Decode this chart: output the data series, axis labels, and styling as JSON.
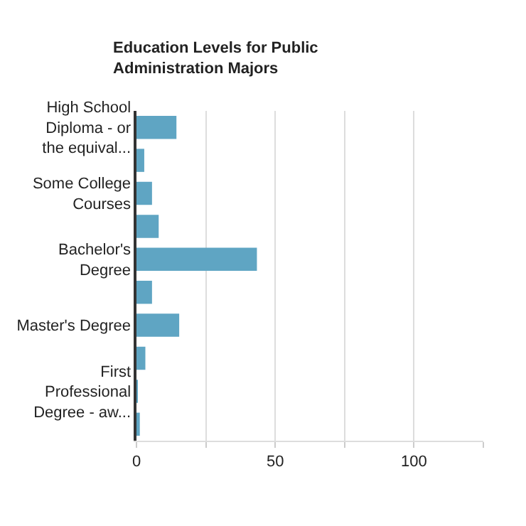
{
  "chart_data": {
    "type": "bar",
    "orientation": "horizontal",
    "title": "Education Levels for Public Administration Majors",
    "categories": [
      "High School Diploma - or the equival...",
      null,
      "Some College Courses",
      null,
      "Bachelor's Degree",
      null,
      "Master's Degree",
      null,
      "First Professional Degree - aw...",
      null
    ],
    "values": [
      14.4,
      2.8,
      5.6,
      8.0,
      43.4,
      5.6,
      15.4,
      3.2,
      0.5,
      1.2
    ],
    "color": "#5fa5c3",
    "xlim": [
      0,
      125
    ],
    "xticks": [
      0,
      {
        "value": 25,
        "label": null
      },
      50,
      {
        "value": 75,
        "label": null
      },
      100,
      {
        "value": 125,
        "label": null
      }
    ],
    "grid": "x",
    "legend": false
  }
}
